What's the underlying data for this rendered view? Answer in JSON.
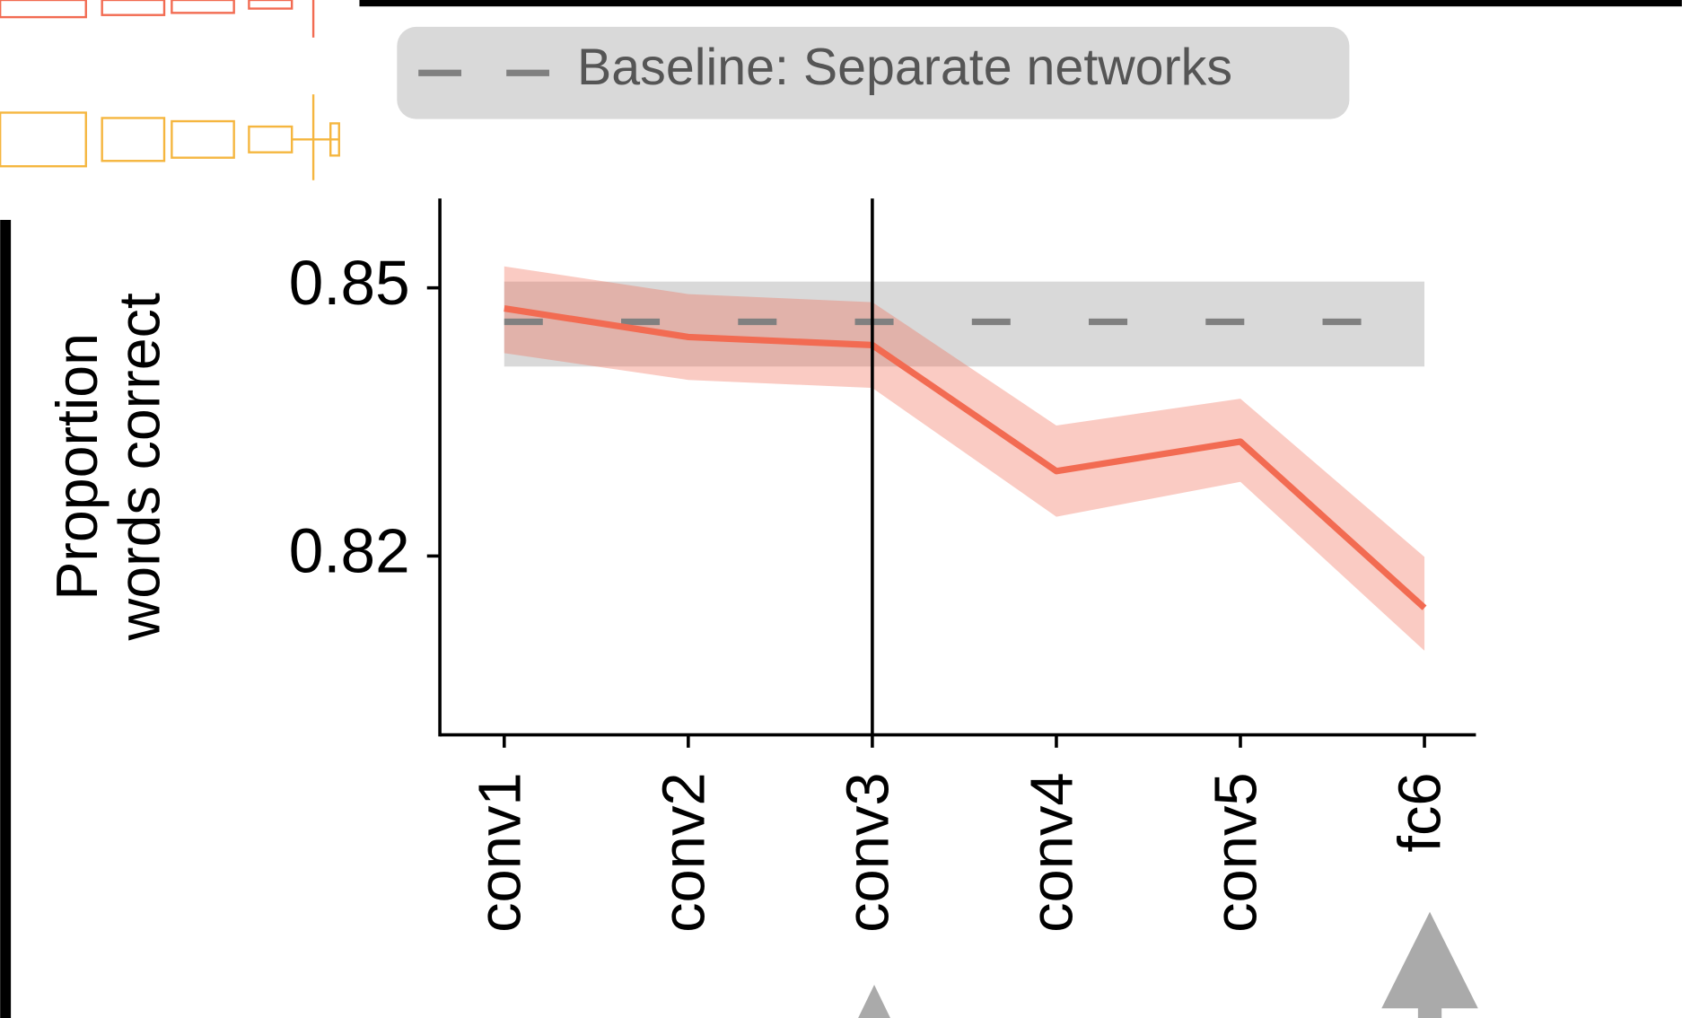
{
  "chart_data": {
    "type": "line",
    "ylabel": [
      "Proportion",
      "words correct"
    ],
    "categories": [
      "conv1",
      "conv2",
      "conv3",
      "conv4",
      "conv5",
      "fc6"
    ],
    "series": [
      {
        "color": "#f26b52",
        "values": [
          0.8477,
          0.8445,
          0.8436,
          0.8295,
          0.8328,
          0.8142
        ],
        "upper": [
          0.8524,
          0.8493,
          0.8484,
          0.8346,
          0.8376,
          0.8199
        ],
        "lower": [
          0.8427,
          0.8397,
          0.8388,
          0.8244,
          0.8283,
          0.8094
        ]
      }
    ],
    "baseline": {
      "name": "Baseline: Separate networks",
      "value": 0.8462,
      "upper": 0.8507,
      "lower": 0.8412,
      "color": "#808080"
    },
    "vline_category": "conv3",
    "ylim": [
      0.8,
      0.86
    ],
    "yticks": [
      0.82,
      0.85
    ]
  }
}
